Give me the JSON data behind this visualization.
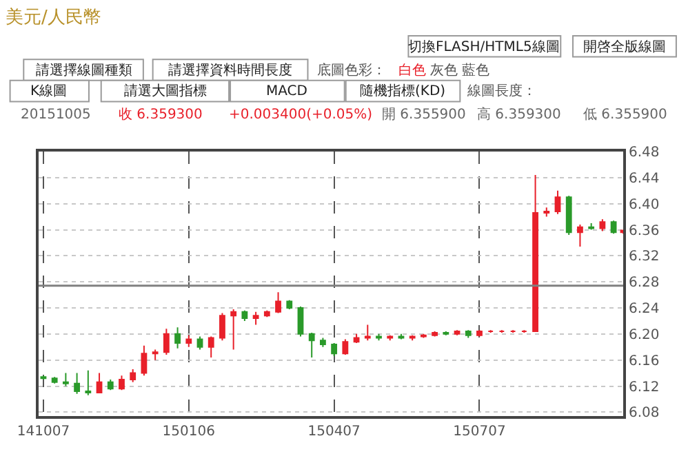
{
  "chart_data": {
    "type": "candlestick",
    "title": "美元/人民幣",
    "annotations": [
      "切換FLASH/HTML5線圖",
      "開啓全版線圖",
      "請選擇線圖種類",
      "請選擇資料時間長度",
      "底圖色彩：",
      "白色",
      "灰色",
      "藍色",
      "K線圖",
      "請選大圖指標",
      "MACD",
      "隨機指標(KD)",
      "線圖長度：",
      "20151005",
      "收 6.359300",
      "+0.003400(+0.05%)",
      "開 6.355900",
      "高 6.359300",
      "低 6.355900"
    ],
    "x": [
      "2014-10-07",
      "2014-10-14",
      "2014-10-21",
      "2014-10-28",
      "2014-11-04",
      "2014-11-11",
      "2014-11-18",
      "2014-11-25",
      "2014-12-02",
      "2014-12-09",
      "2014-12-16",
      "2014-12-23",
      "2014-12-30",
      "2015-01-06",
      "2015-01-13",
      "2015-01-20",
      "2015-01-27",
      "2015-02-03",
      "2015-02-10",
      "2015-02-17",
      "2015-02-24",
      "2015-03-03",
      "2015-03-10",
      "2015-03-17",
      "2015-03-24",
      "2015-03-31",
      "2015-04-07",
      "2015-04-14",
      "2015-04-21",
      "2015-04-28",
      "2015-05-05",
      "2015-05-12",
      "2015-05-19",
      "2015-05-26",
      "2015-06-02",
      "2015-06-09",
      "2015-06-16",
      "2015-06-23",
      "2015-06-30",
      "2015-07-07",
      "2015-07-14",
      "2015-07-21",
      "2015-07-28",
      "2015-08-04",
      "2015-08-11",
      "2015-08-18",
      "2015-08-25",
      "2015-09-01",
      "2015-09-08",
      "2015-09-15",
      "2015-09-22",
      "2015-09-29",
      "2015-10-05"
    ],
    "ohlc": [
      [
        6.134,
        6.136,
        6.13,
        6.132
      ],
      [
        6.132,
        6.134,
        6.124,
        6.126
      ],
      [
        6.126,
        6.14,
        6.12,
        6.124
      ],
      [
        6.124,
        6.14,
        6.108,
        6.112
      ],
      [
        6.112,
        6.144,
        6.106,
        6.11
      ],
      [
        6.11,
        6.14,
        6.11,
        6.126
      ],
      [
        6.126,
        6.13,
        6.114,
        6.116
      ],
      [
        6.116,
        6.136,
        6.114,
        6.13
      ],
      [
        6.13,
        6.146,
        6.126,
        6.14
      ],
      [
        6.14,
        6.182,
        6.136,
        6.17
      ],
      [
        6.17,
        6.176,
        6.16,
        6.172
      ],
      [
        6.172,
        6.208,
        6.168,
        6.2
      ],
      [
        6.2,
        6.21,
        6.178,
        6.186
      ],
      [
        6.186,
        6.198,
        6.18,
        6.192
      ],
      [
        6.192,
        6.196,
        6.176,
        6.18
      ],
      [
        6.18,
        6.196,
        6.164,
        6.194
      ],
      [
        6.194,
        6.232,
        6.19,
        6.228
      ],
      [
        6.228,
        6.238,
        6.176,
        6.234
      ],
      [
        6.234,
        6.236,
        6.22,
        6.224
      ],
      [
        6.224,
        6.234,
        6.214,
        6.228
      ],
      [
        6.228,
        6.236,
        6.226,
        6.234
      ],
      [
        6.234,
        6.264,
        6.232,
        6.25
      ],
      [
        6.25,
        6.252,
        6.238,
        6.24
      ],
      [
        6.24,
        6.242,
        6.196,
        6.2
      ],
      [
        6.2,
        6.202,
        6.164,
        6.19
      ],
      [
        6.19,
        6.194,
        6.18,
        6.184
      ],
      [
        6.184,
        6.186,
        6.166,
        6.17
      ],
      [
        6.17,
        6.192,
        6.168,
        6.188
      ],
      [
        6.188,
        6.2,
        6.186,
        6.194
      ],
      [
        6.194,
        6.214,
        6.19,
        6.196
      ],
      [
        6.196,
        6.2,
        6.19,
        6.194
      ],
      [
        6.194,
        6.198,
        6.19,
        6.196
      ],
      [
        6.196,
        6.2,
        6.192,
        6.194
      ],
      [
        6.194,
        6.198,
        6.19,
        6.196
      ],
      [
        6.196,
        6.2,
        6.194,
        6.198
      ],
      [
        6.198,
        6.204,
        6.196,
        6.202
      ],
      [
        6.202,
        6.204,
        6.198,
        6.2
      ],
      [
        6.2,
        6.206,
        6.198,
        6.204
      ],
      [
        6.204,
        6.206,
        6.194,
        6.198
      ],
      [
        6.198,
        6.206,
        6.196,
        6.204
      ],
      [
        6.204,
        6.206,
        6.202,
        6.204
      ],
      [
        6.204,
        6.206,
        6.202,
        6.204
      ],
      [
        6.204,
        6.206,
        6.202,
        6.204
      ],
      [
        6.204,
        6.206,
        6.202,
        6.204
      ],
      [
        6.204,
        6.444,
        6.204,
        6.386
      ],
      [
        6.386,
        6.394,
        6.38,
        6.388
      ],
      [
        6.388,
        6.42,
        6.384,
        6.41
      ],
      [
        6.41,
        6.412,
        6.352,
        6.356
      ],
      [
        6.356,
        6.368,
        6.334,
        6.364
      ],
      [
        6.364,
        6.37,
        6.36,
        6.362
      ],
      [
        6.362,
        6.376,
        6.358,
        6.372
      ],
      [
        6.372,
        6.374,
        6.354,
        6.356
      ],
      [
        6.356,
        6.36,
        6.354,
        6.359
      ]
    ],
    "colors": [
      "#2a9a2a",
      "#2a9a2a",
      "#2a9a2a",
      "#2a9a2a",
      "#2a9a2a",
      "#e8202a",
      "#2a9a2a",
      "#e8202a",
      "#e8202a",
      "#e8202a",
      "#e8202a",
      "#e8202a",
      "#2a9a2a",
      "#e8202a",
      "#2a9a2a",
      "#e8202a",
      "#e8202a",
      "#e8202a",
      "#2a9a2a",
      "#e8202a",
      "#e8202a",
      "#e8202a",
      "#2a9a2a",
      "#2a9a2a",
      "#2a9a2a",
      "#2a9a2a",
      "#2a9a2a",
      "#e8202a",
      "#e8202a",
      "#e8202a",
      "#2a9a2a",
      "#e8202a",
      "#2a9a2a",
      "#e8202a",
      "#e8202a",
      "#e8202a",
      "#2a9a2a",
      "#e8202a",
      "#2a9a2a",
      "#e8202a",
      "#e8202a",
      "#e8202a",
      "#e8202a",
      "#e8202a",
      "#e8202a",
      "#e8202a",
      "#e8202a",
      "#2a9a2a",
      "#e8202a",
      "#2a9a2a",
      "#e8202a",
      "#2a9a2a",
      "#e8202a"
    ],
    "xlim": [
      "2014-10-04",
      "2015-10-05"
    ],
    "xticks": [
      {
        "value": "2014-10-07",
        "label": "141007"
      },
      {
        "value": "2015-01-06",
        "label": "150106"
      },
      {
        "value": "2015-04-07",
        "label": "150407"
      },
      {
        "value": "2015-07-07",
        "label": "150707"
      }
    ],
    "ylim": [
      6.074,
      6.48
    ],
    "yticks": [
      6.08,
      6.12,
      6.16,
      {
        "value": 6.2,
        "label": "6.20"
      },
      6.24,
      6.28,
      6.32,
      6.36,
      {
        "value": 6.4,
        "label": "6.40"
      },
      6.44,
      6.48
    ],
    "ref_lines": [
      {
        "axis": "y",
        "value": 6.274,
        "color": "#808080"
      }
    ],
    "grid": true
  }
}
